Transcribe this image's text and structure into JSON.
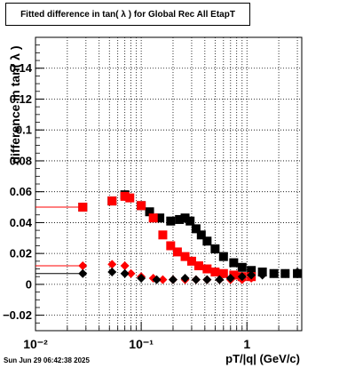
{
  "chart_data": {
    "type": "scatter",
    "title": "Fitted difference in tan( λ ) for Global Rec All EtapT",
    "xlabel": "pT/|q| (GeV/c)",
    "ylabel": "difference in tan( λ )",
    "xscale": "log",
    "xlim": [
      0.01,
      3.3
    ],
    "ylim": [
      -0.03,
      0.16
    ],
    "grid": true,
    "x_tick_labels": [
      "10⁻²",
      "10⁻¹",
      "1"
    ],
    "y_tick_labels": [
      "−0.02",
      "0",
      "0.02",
      "0.04",
      "0.06",
      "0.08",
      "0.1",
      "0.12",
      "0.14"
    ],
    "series": [
      {
        "marker": "square",
        "color": "#000000",
        "first_x_range": [
          0.01,
          0.028
        ],
        "x": [
          0.028,
          0.053,
          0.07,
          0.1,
          0.12,
          0.15,
          0.19,
          0.23,
          0.26,
          0.29,
          0.33,
          0.37,
          0.42,
          0.5,
          0.6,
          0.75,
          0.9,
          1.1,
          1.4,
          1.8,
          2.3,
          3.0
        ],
        "y": [
          0.05,
          0.054,
          0.058,
          0.051,
          0.047,
          0.043,
          0.041,
          0.042,
          0.043,
          0.041,
          0.036,
          0.032,
          0.028,
          0.023,
          0.018,
          0.014,
          0.011,
          0.009,
          0.008,
          0.007,
          0.007,
          0.007
        ]
      },
      {
        "marker": "square",
        "color": "#ff0000",
        "first_x_range": [
          0.01,
          0.028
        ],
        "x": [
          0.028,
          0.053,
          0.07,
          0.078,
          0.1,
          0.13,
          0.16,
          0.19,
          0.22,
          0.26,
          0.3,
          0.35,
          0.42,
          0.5,
          0.6,
          0.75,
          0.9,
          1.1
        ],
        "y": [
          0.05,
          0.054,
          0.057,
          0.056,
          0.051,
          0.043,
          0.032,
          0.025,
          0.021,
          0.018,
          0.015,
          0.012,
          0.01,
          0.008,
          0.007,
          0.006,
          0.005,
          0.005
        ]
      },
      {
        "marker": "diamond",
        "color": "#ff0000",
        "first_x_range": [
          0.01,
          0.028
        ],
        "x": [
          0.028,
          0.053,
          0.07,
          0.08,
          0.1,
          0.13,
          0.16,
          0.2,
          0.26,
          0.33,
          0.42,
          0.55,
          0.7,
          0.9,
          1.1
        ],
        "y": [
          0.012,
          0.013,
          0.012,
          0.007,
          0.005,
          0.004,
          0.003,
          0.003,
          0.003,
          0.003,
          0.003,
          0.003,
          0.003,
          0.003,
          0.004
        ]
      },
      {
        "marker": "diamond",
        "color": "#000000",
        "first_x_range": [
          0.01,
          0.028
        ],
        "x": [
          0.028,
          0.053,
          0.07,
          0.1,
          0.14,
          0.2,
          0.26,
          0.33,
          0.42,
          0.55,
          0.7,
          0.9,
          1.1,
          1.4,
          1.8,
          2.3,
          3.0
        ],
        "y": [
          0.007,
          0.008,
          0.007,
          0.004,
          0.003,
          0.003,
          0.004,
          0.003,
          0.003,
          0.003,
          0.004,
          0.005,
          0.006,
          0.006,
          0.007,
          0.007,
          0.008
        ]
      }
    ]
  },
  "footer": {
    "timestamp": "Sun Jun 29 06:42:38 2025"
  }
}
